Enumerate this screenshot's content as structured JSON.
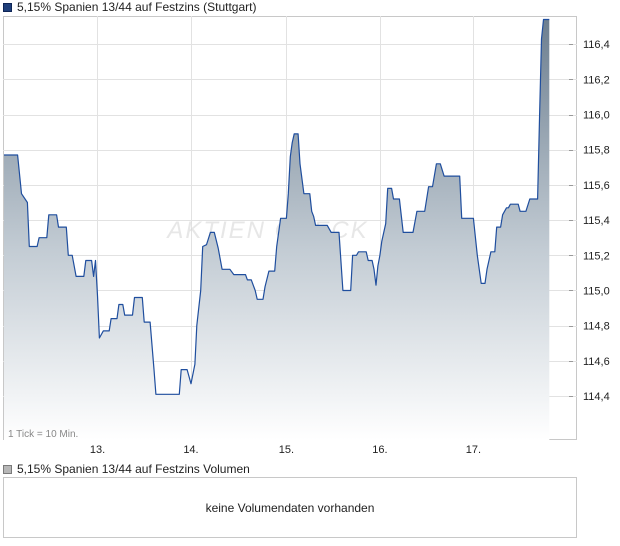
{
  "price_legend": {
    "label": "5,15% Spanien 13/44 auf Festzins (Stuttgart)",
    "color": "#1f3f7a"
  },
  "volume_legend": {
    "label": "5,15% Spanien 13/44 auf Festzins Volumen",
    "color": "#b7b7b7"
  },
  "tick_note": "1 Tick = 10 Min.",
  "watermark": "AKTIEN CHECK",
  "volume_message": "keine Volumendaten vorhanden",
  "chart_data": {
    "type": "area",
    "title": "5,15% Spanien 13/44 auf Festzins (Stuttgart)",
    "y_axis_side": "right",
    "ylim": [
      114.15,
      116.56
    ],
    "yticks": [
      114.4,
      114.6,
      114.8,
      115.0,
      115.2,
      115.4,
      115.6,
      115.8,
      116.0,
      116.2,
      116.4
    ],
    "ytick_labels": [
      "114,4",
      "114,6",
      "114,8",
      "115,0",
      "115,2",
      "115,4",
      "115,6",
      "115,8",
      "116,0",
      "116,2",
      "116,4"
    ],
    "xlim": [
      0,
      286
    ],
    "xticks": [
      48,
      96,
      145,
      193,
      241
    ],
    "xtick_labels": [
      "13.",
      "14.",
      "15.",
      "16.",
      "17."
    ],
    "grid": true,
    "line_color": "#1f4e9e",
    "fill_top_color": "#6d7f90",
    "fill_bottom_color": "#ffffff",
    "series": [
      {
        "values": [
          [
            0,
            115.77
          ],
          [
            7,
            115.77
          ],
          [
            9,
            115.55
          ],
          [
            12,
            115.5
          ],
          [
            13,
            115.25
          ],
          [
            17,
            115.25
          ],
          [
            18,
            115.3
          ],
          [
            22,
            115.3
          ],
          [
            23,
            115.43
          ],
          [
            27,
            115.43
          ],
          [
            28,
            115.36
          ],
          [
            32,
            115.36
          ],
          [
            33,
            115.2
          ],
          [
            35,
            115.2
          ],
          [
            37,
            115.08
          ],
          [
            41,
            115.08
          ],
          [
            42,
            115.17
          ],
          [
            45,
            115.17
          ],
          [
            46,
            115.08
          ],
          [
            47,
            115.17
          ],
          [
            48,
            114.97
          ],
          [
            49,
            114.73
          ],
          [
            51,
            114.77
          ],
          [
            54,
            114.77
          ],
          [
            55,
            114.84
          ],
          [
            58,
            114.84
          ],
          [
            59,
            114.92
          ],
          [
            61,
            114.92
          ],
          [
            62,
            114.86
          ],
          [
            66,
            114.86
          ],
          [
            67,
            114.96
          ],
          [
            71,
            114.96
          ],
          [
            72,
            114.82
          ],
          [
            75,
            114.82
          ],
          [
            77,
            114.55
          ],
          [
            78,
            114.41
          ],
          [
            90,
            114.41
          ],
          [
            91,
            114.55
          ],
          [
            94,
            114.55
          ],
          [
            96,
            114.47
          ],
          [
            98,
            114.58
          ],
          [
            99,
            114.8
          ],
          [
            101,
            115.0
          ],
          [
            102,
            115.25
          ],
          [
            104,
            115.26
          ],
          [
            106,
            115.33
          ],
          [
            108,
            115.33
          ],
          [
            110,
            115.24
          ],
          [
            112,
            115.12
          ],
          [
            116,
            115.12
          ],
          [
            118,
            115.09
          ],
          [
            123,
            115.09
          ],
          [
            124,
            115.09
          ],
          [
            125,
            115.06
          ],
          [
            127,
            115.06
          ],
          [
            129,
            115.0
          ],
          [
            130,
            114.95
          ],
          [
            133,
            114.95
          ],
          [
            134,
            115.02
          ],
          [
            136,
            115.11
          ],
          [
            139,
            115.11
          ],
          [
            140,
            115.25
          ],
          [
            142,
            115.41
          ],
          [
            145,
            115.41
          ],
          [
            146,
            115.55
          ],
          [
            147,
            115.76
          ],
          [
            148,
            115.84
          ],
          [
            149,
            115.89
          ],
          [
            151,
            115.89
          ],
          [
            152,
            115.72
          ],
          [
            154,
            115.55
          ],
          [
            157,
            115.55
          ],
          [
            158,
            115.45
          ],
          [
            159,
            115.42
          ],
          [
            160,
            115.37
          ],
          [
            166,
            115.37
          ],
          [
            168,
            115.33
          ],
          [
            172,
            115.33
          ],
          [
            174,
            115.0
          ],
          [
            178,
            115.0
          ],
          [
            179,
            115.2
          ],
          [
            181,
            115.2
          ],
          [
            182,
            115.22
          ],
          [
            186,
            115.22
          ],
          [
            187,
            115.17
          ],
          [
            189,
            115.17
          ],
          [
            190,
            115.12
          ],
          [
            191,
            115.03
          ],
          [
            192,
            115.14
          ],
          [
            193,
            115.2
          ],
          [
            194,
            115.28
          ],
          [
            196,
            115.38
          ],
          [
            197,
            115.58
          ],
          [
            199,
            115.58
          ],
          [
            200,
            115.52
          ],
          [
            203,
            115.52
          ],
          [
            205,
            115.33
          ],
          [
            210,
            115.33
          ],
          [
            212,
            115.45
          ],
          [
            216,
            115.45
          ],
          [
            218,
            115.59
          ],
          [
            220,
            115.59
          ],
          [
            222,
            115.72
          ],
          [
            224,
            115.72
          ],
          [
            226,
            115.65
          ],
          [
            234,
            115.65
          ],
          [
            235,
            115.41
          ],
          [
            241,
            115.41
          ],
          [
            243,
            115.2
          ],
          [
            245,
            115.04
          ],
          [
            247,
            115.04
          ],
          [
            248,
            115.12
          ],
          [
            250,
            115.22
          ],
          [
            252,
            115.22
          ],
          [
            253,
            115.36
          ],
          [
            255,
            115.36
          ],
          [
            256,
            115.43
          ],
          [
            258,
            115.47
          ],
          [
            259,
            115.47
          ],
          [
            260,
            115.49
          ],
          [
            264,
            115.49
          ],
          [
            265,
            115.45
          ],
          [
            268,
            115.45
          ],
          [
            270,
            115.52
          ],
          [
            274,
            115.52
          ],
          [
            275,
            116.0
          ],
          [
            276,
            116.43
          ],
          [
            277,
            116.54
          ],
          [
            280,
            116.54
          ]
        ]
      }
    ]
  }
}
